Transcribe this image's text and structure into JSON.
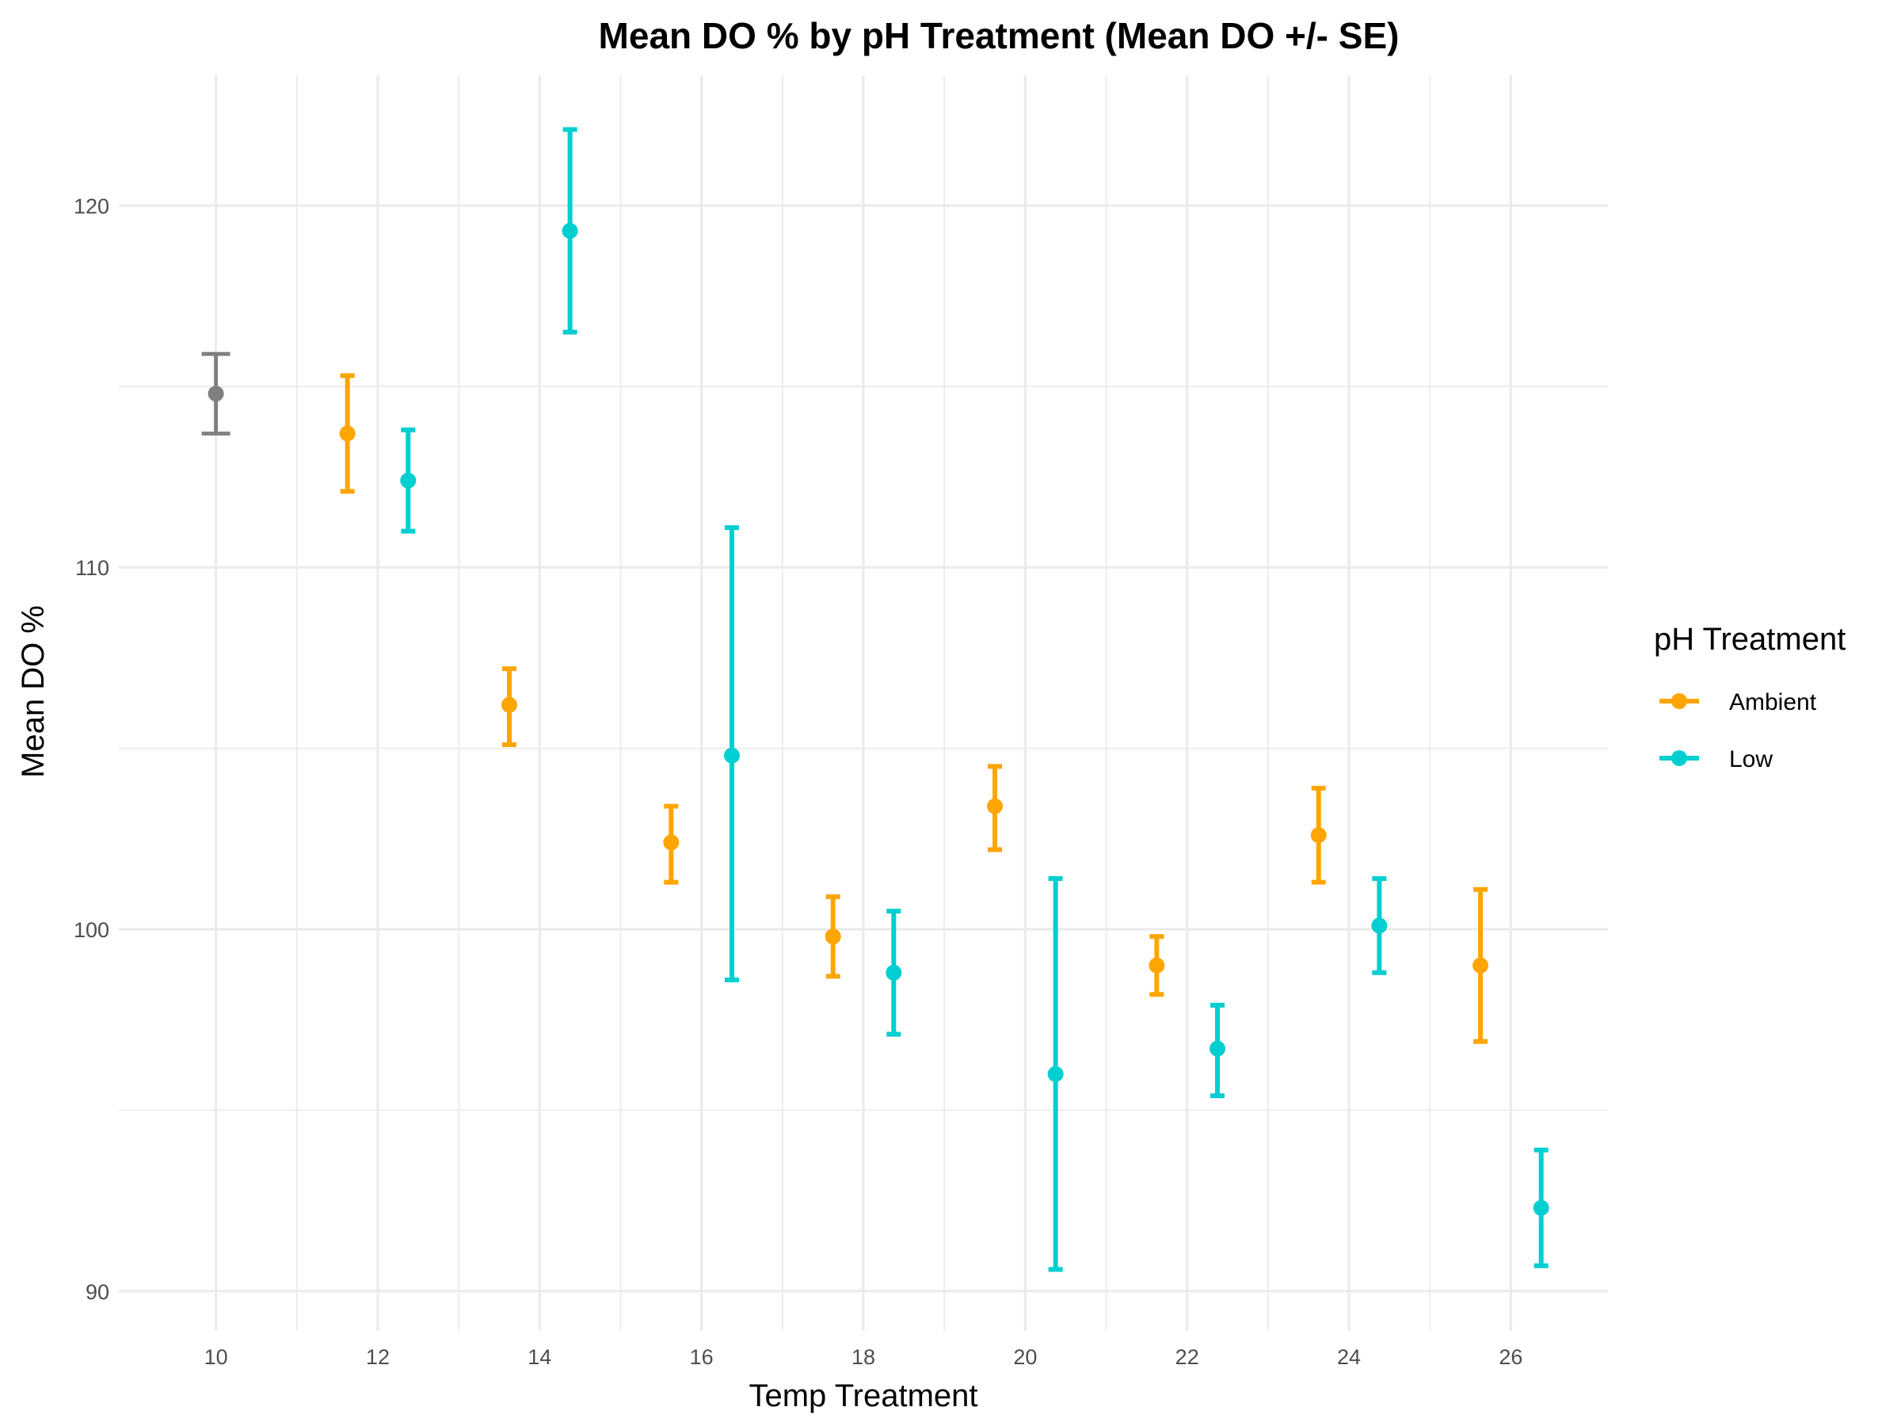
{
  "chart_data": {
    "type": "scatter",
    "title": "Mean DO % by pH Treatment (Mean DO +/- SE)",
    "xlabel": "Temp Treatment",
    "ylabel": "Mean DO %",
    "xlim": [
      8.8,
      27.2
    ],
    "ylim": [
      88.9,
      123.6
    ],
    "x_ticks": [
      10,
      12,
      14,
      16,
      18,
      20,
      22,
      24,
      26
    ],
    "y_ticks": [
      90,
      100,
      110,
      120
    ],
    "grid": true,
    "legend": {
      "title": "pH Treatment",
      "position": "right"
    },
    "series": [
      {
        "color": "#808080",
        "points": [
          {
            "x": 10,
            "y": 114.8,
            "lower": 113.7,
            "upper": 115.9
          }
        ]
      },
      {
        "name": "Ambient",
        "color": "#FFA500",
        "points": [
          {
            "x": 12,
            "y": 113.7,
            "lower": 112.1,
            "upper": 115.3
          },
          {
            "x": 14,
            "y": 106.2,
            "lower": 105.1,
            "upper": 107.2
          },
          {
            "x": 16,
            "y": 102.4,
            "lower": 101.3,
            "upper": 103.4
          },
          {
            "x": 18,
            "y": 99.8,
            "lower": 98.7,
            "upper": 100.9
          },
          {
            "x": 20,
            "y": 103.4,
            "lower": 102.2,
            "upper": 104.5
          },
          {
            "x": 22,
            "y": 99.0,
            "lower": 98.2,
            "upper": 99.8
          },
          {
            "x": 24,
            "y": 102.6,
            "lower": 101.3,
            "upper": 103.9
          },
          {
            "x": 26,
            "y": 99.0,
            "lower": 96.9,
            "upper": 101.1
          }
        ]
      },
      {
        "name": "Low",
        "color": "#00CED1",
        "points": [
          {
            "x": 12,
            "y": 112.4,
            "lower": 111.0,
            "upper": 113.8
          },
          {
            "x": 14,
            "y": 119.3,
            "lower": 116.5,
            "upper": 122.1
          },
          {
            "x": 16,
            "y": 104.8,
            "lower": 98.6,
            "upper": 111.1
          },
          {
            "x": 18,
            "y": 98.8,
            "lower": 97.1,
            "upper": 100.5
          },
          {
            "x": 20,
            "y": 96.0,
            "lower": 90.6,
            "upper": 101.4
          },
          {
            "x": 22,
            "y": 96.7,
            "lower": 95.4,
            "upper": 97.9
          },
          {
            "x": 24,
            "y": 100.1,
            "lower": 98.8,
            "upper": 101.4
          },
          {
            "x": 26,
            "y": 92.3,
            "lower": 90.7,
            "upper": 93.9
          }
        ]
      }
    ]
  }
}
